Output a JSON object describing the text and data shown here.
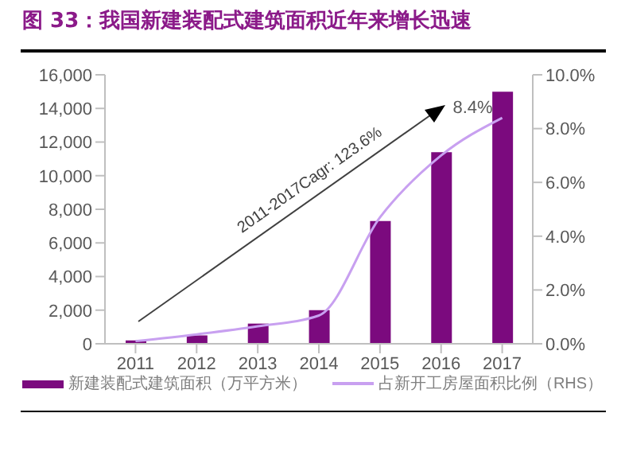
{
  "chart_data": {
    "type": "bar",
    "title": "图 33：我国新建装配式建筑面积近年来增长迅速",
    "categories": [
      "2011",
      "2012",
      "2013",
      "2014",
      "2015",
      "2016",
      "2017"
    ],
    "series": [
      {
        "name": "新建装配式建筑面积（万平方米）",
        "color": "#7b0a7e",
        "values": [
          200,
          500,
          1200,
          2000,
          7300,
          11400,
          15000
        ]
      },
      {
        "name": "占新开工房屋面积比例（RHS）",
        "type": "line",
        "axis": "y2",
        "color": "#c8a0f0",
        "marker": "none",
        "values": [
          0.1,
          0.35,
          0.65,
          1.05,
          4.7,
          7.0,
          8.4
        ],
        "value_labels": [
          null,
          null,
          null,
          null,
          null,
          null,
          "8.4%"
        ]
      }
    ],
    "ylim": [
      0,
      16000
    ],
    "yticks": [
      {
        "value": 0,
        "label": "0"
      },
      {
        "value": 2000,
        "label": "2,000"
      },
      {
        "value": 4000,
        "label": "4,000"
      },
      {
        "value": 6000,
        "label": "6,000"
      },
      {
        "value": 8000,
        "label": "8,000"
      },
      {
        "value": 10000,
        "label": "10,000"
      },
      {
        "value": 12000,
        "label": "12,000"
      },
      {
        "value": 14000,
        "label": "14,000"
      },
      {
        "value": 16000,
        "label": "16,000"
      }
    ],
    "y2lim": [
      0,
      10
    ],
    "y2ticks": [
      {
        "value": 0,
        "label": "0.0%"
      },
      {
        "value": 2,
        "label": "2.0%"
      },
      {
        "value": 4,
        "label": "4.0%"
      },
      {
        "value": 6,
        "label": "6.0%"
      },
      {
        "value": 8,
        "label": "8.0%"
      },
      {
        "value": 10,
        "label": "10.0%"
      }
    ],
    "annotations": [
      "2011-2017Cagr: 123.6%"
    ],
    "legend": "bottom",
    "grid": false
  }
}
